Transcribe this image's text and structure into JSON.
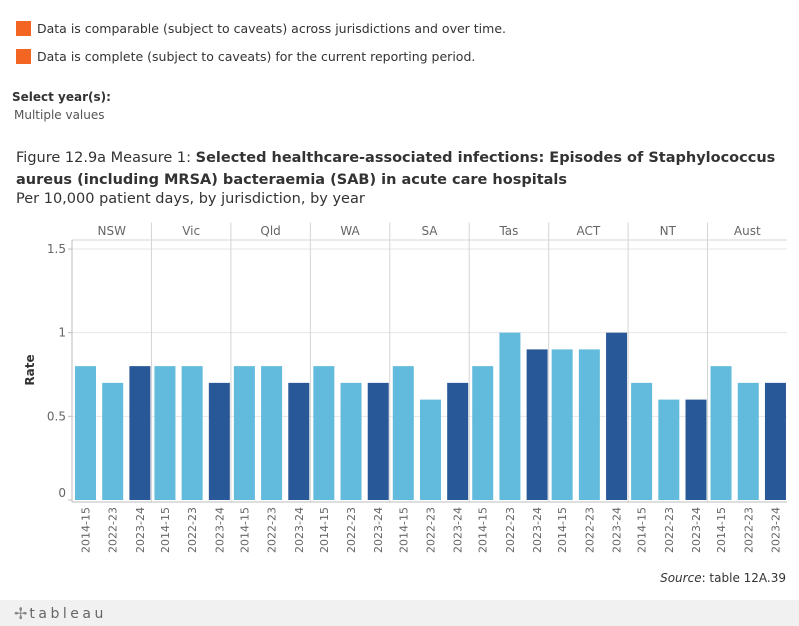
{
  "legend": {
    "items": [
      {
        "label": "Data is comparable (subject to caveats) across jurisdictions and over time.",
        "color": "#f26522"
      },
      {
        "label": "Data is complete (subject to caveats) for the current reporting period.",
        "color": "#f26522"
      }
    ]
  },
  "filter": {
    "label": "Select year(s):",
    "value": "Multiple values"
  },
  "figure": {
    "title_prefix": "Figure 12.9a Measure 1: ",
    "title_bold": "Selected healthcare-associated infections: Episodes of Staphylococcus aureus (including MRSA) bacteraemia (SAB) in acute care hospitals",
    "subtitle": "Per 10,000 patient days, by jurisdiction, by year"
  },
  "source": {
    "label": "Source",
    "text": ": table 12A.39"
  },
  "footer": {
    "brand": "tableau"
  },
  "chart_data": {
    "type": "bar",
    "ylabel": "Rate",
    "ylim": [
      0,
      1.5
    ],
    "yticks": [
      0,
      0.5,
      1,
      1.5
    ],
    "yticklabels": [
      "0",
      "0.5",
      "1",
      "1.5"
    ],
    "years": [
      "2014-15",
      "2022-23",
      "2023-24"
    ],
    "colors": {
      "2014-15": "#62bbdc",
      "2022-23": "#62bbdc",
      "2023-24": "#285897"
    },
    "groups": [
      {
        "name": "NSW",
        "values": [
          0.8,
          0.7,
          0.8
        ]
      },
      {
        "name": "Vic",
        "values": [
          0.8,
          0.8,
          0.7
        ]
      },
      {
        "name": "Qld",
        "values": [
          0.8,
          0.8,
          0.7
        ]
      },
      {
        "name": "WA",
        "values": [
          0.8,
          0.7,
          0.7
        ]
      },
      {
        "name": "SA",
        "values": [
          0.8,
          0.6,
          0.7
        ]
      },
      {
        "name": "Tas",
        "values": [
          0.8,
          1.0,
          0.9
        ]
      },
      {
        "name": "ACT",
        "values": [
          0.9,
          0.9,
          1.0
        ]
      },
      {
        "name": "NT",
        "values": [
          0.7,
          0.6,
          0.6
        ]
      },
      {
        "name": "Aust",
        "values": [
          0.8,
          0.7,
          0.7
        ]
      }
    ]
  }
}
